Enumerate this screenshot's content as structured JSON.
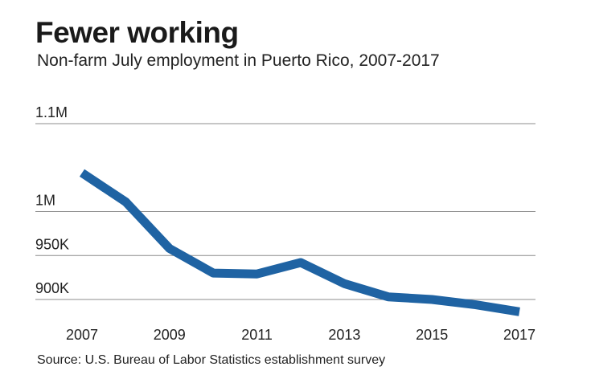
{
  "header": {
    "title": "Fewer working",
    "subtitle": "Non-farm July employment in Puerto Rico, 2007-2017"
  },
  "footer": {
    "source": "Source: U.S. Bureau of Labor Statistics establishment survey"
  },
  "colors": {
    "line": "#1f63a3",
    "grid": "#8c8c8c",
    "text": "#222222"
  },
  "chart_data": {
    "type": "line",
    "title": "Fewer working",
    "subtitle": "Non-farm July employment in Puerto Rico, 2007-2017",
    "xlabel": "",
    "ylabel": "",
    "x": [
      2007,
      2008,
      2009,
      2010,
      2011,
      2012,
      2013,
      2014,
      2015,
      2016,
      2017
    ],
    "series": [
      {
        "values": [
          1044000,
          1011000,
          958000,
          930000,
          929000,
          942000,
          918000,
          903000,
          900000,
          894000,
          886000
        ]
      }
    ],
    "xlim": [
      2007,
      2017
    ],
    "ylim": [
      885000,
      1100000
    ],
    "x_tick_values": [
      2007,
      2009,
      2011,
      2013,
      2015,
      2017
    ],
    "x_tick_labels": [
      "2007",
      "2009",
      "2011",
      "2013",
      "2015",
      "2017"
    ],
    "y_tick_values": [
      900000,
      950000,
      1000000,
      1100000
    ],
    "y_tick_labels": [
      "900K",
      "950K",
      "1M",
      "1.1M"
    ],
    "grid": true,
    "legend": "none"
  }
}
